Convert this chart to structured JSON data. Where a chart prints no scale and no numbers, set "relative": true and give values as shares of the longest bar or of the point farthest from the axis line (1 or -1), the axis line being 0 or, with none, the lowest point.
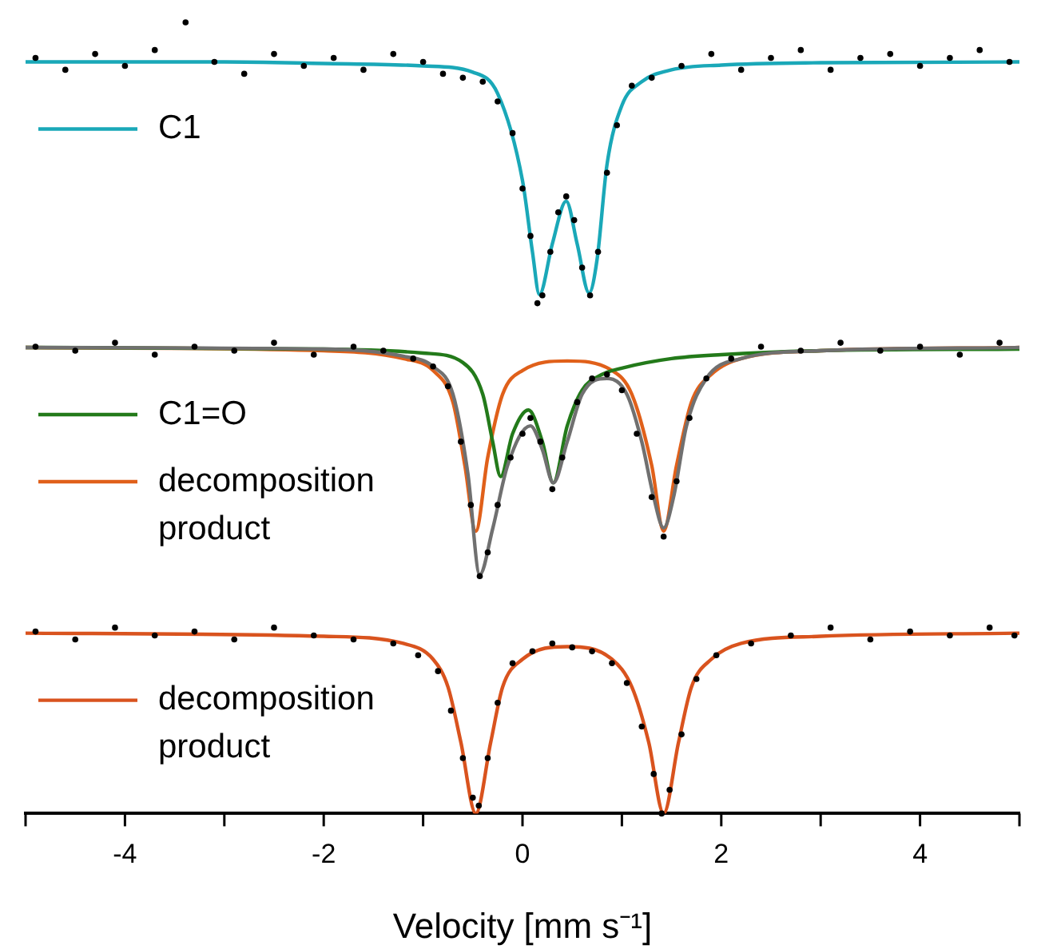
{
  "chart_data": {
    "type": "line",
    "relative": true,
    "xlabel": "Velocity [mm s⁻¹]",
    "xlim": [
      -5,
      5
    ],
    "xticks": [
      {
        "value": -5,
        "label": null
      },
      -4,
      {
        "value": -3,
        "label": null
      },
      -2,
      {
        "value": -1,
        "label": null
      },
      0,
      {
        "value": 1,
        "label": null
      },
      2,
      {
        "value": 3,
        "label": null
      },
      4,
      {
        "value": 5,
        "label": null
      }
    ],
    "grid": false,
    "legend": "left",
    "series": [
      {
        "type": "scatter",
        "marker": "circle",
        "color": "#000000",
        "x": [
          -4.9,
          -4.6,
          -4.3,
          -4.0,
          -3.7,
          -3.39,
          -3.1,
          -2.8,
          -2.5,
          -2.2,
          -1.9,
          -1.6,
          -1.3,
          -1.0,
          -0.8,
          -0.6,
          -0.4,
          -0.25,
          -0.1,
          0.0,
          0.08,
          0.15,
          0.2,
          0.28,
          0.36,
          0.44,
          0.52,
          0.6,
          0.68,
          0.76,
          0.85,
          0.95,
          1.1,
          1.3,
          1.6,
          1.9,
          2.2,
          2.5,
          2.8,
          3.1,
          3.4,
          3.7,
          4.0,
          4.3,
          4.6,
          4.9
        ],
        "values": [
          0.955,
          0.94,
          0.96,
          0.945,
          0.965,
          1.0,
          0.95,
          0.935,
          0.96,
          0.945,
          0.955,
          0.94,
          0.96,
          0.95,
          0.935,
          0.93,
          0.925,
          0.9,
          0.86,
          0.79,
          0.73,
          0.645,
          0.655,
          0.71,
          0.76,
          0.78,
          0.75,
          0.69,
          0.655,
          0.71,
          0.81,
          0.87,
          0.92,
          0.93,
          0.945,
          0.96,
          0.94,
          0.955,
          0.965,
          0.94,
          0.955,
          0.96,
          0.945,
          0.955,
          0.965,
          0.95
        ]
      },
      {
        "type": "scatter",
        "marker": "circle",
        "color": "#000000",
        "x": [
          -4.9,
          -4.5,
          -4.1,
          -3.7,
          -3.3,
          -2.9,
          -2.5,
          -2.1,
          -1.7,
          -1.4,
          -1.1,
          -0.9,
          -0.75,
          -0.62,
          -0.52,
          -0.43,
          -0.35,
          -0.25,
          -0.12,
          0.0,
          0.08,
          0.18,
          0.3,
          0.4,
          0.55,
          0.7,
          0.85,
          1.0,
          1.15,
          1.3,
          1.42,
          1.55,
          1.68,
          1.85,
          2.1,
          2.4,
          2.8,
          3.2,
          3.6,
          4.0,
          4.4,
          4.8
        ],
        "values": [
          0.59,
          0.585,
          0.595,
          0.58,
          0.59,
          0.585,
          0.595,
          0.58,
          0.59,
          0.585,
          0.575,
          0.565,
          0.54,
          0.47,
          0.39,
          0.3,
          0.33,
          0.39,
          0.45,
          0.48,
          0.5,
          0.47,
          0.41,
          0.45,
          0.52,
          0.55,
          0.555,
          0.535,
          0.48,
          0.4,
          0.35,
          0.42,
          0.5,
          0.55,
          0.575,
          0.59,
          0.585,
          0.595,
          0.585,
          0.59,
          0.58,
          0.595
        ]
      },
      {
        "type": "scatter",
        "marker": "circle",
        "color": "#000000",
        "x": [
          -4.9,
          -4.5,
          -4.1,
          -3.7,
          -3.3,
          -2.9,
          -2.5,
          -2.1,
          -1.7,
          -1.3,
          -1.05,
          -0.85,
          -0.72,
          -0.6,
          -0.5,
          -0.44,
          -0.35,
          -0.25,
          -0.1,
          0.1,
          0.3,
          0.5,
          0.7,
          0.9,
          1.05,
          1.2,
          1.32,
          1.4,
          1.48,
          1.6,
          1.75,
          1.95,
          2.3,
          2.7,
          3.1,
          3.5,
          3.9,
          4.3,
          4.7,
          4.95
        ],
        "values": [
          0.23,
          0.22,
          0.235,
          0.225,
          0.23,
          0.22,
          0.235,
          0.225,
          0.22,
          0.215,
          0.2,
          0.18,
          0.13,
          0.07,
          0.02,
          0.01,
          0.07,
          0.14,
          0.19,
          0.205,
          0.215,
          0.21,
          0.205,
          0.19,
          0.165,
          0.11,
          0.05,
          0.0,
          0.03,
          0.1,
          0.17,
          0.2,
          0.215,
          0.225,
          0.235,
          0.22,
          0.23,
          0.225,
          0.235,
          0.225
        ]
      },
      {
        "name": "C1",
        "color": "#1aa8b8",
        "x": [
          -5,
          -3,
          -2,
          -1,
          -0.5,
          -0.25,
          0,
          0.1,
          0.17,
          0.3,
          0.44,
          0.55,
          0.67,
          0.75,
          0.85,
          1.0,
          1.2,
          1.5,
          2,
          3,
          5
        ],
        "values": [
          0.95,
          0.95,
          0.948,
          0.945,
          0.937,
          0.91,
          0.8,
          0.71,
          0.656,
          0.72,
          0.774,
          0.72,
          0.658,
          0.7,
          0.82,
          0.895,
          0.925,
          0.94,
          0.946,
          0.949,
          0.95
        ]
      },
      {
        "color": "#707070",
        "x": [
          -5,
          -2,
          -1.2,
          -0.9,
          -0.7,
          -0.55,
          -0.43,
          -0.3,
          -0.15,
          0.08,
          0.2,
          0.31,
          0.45,
          0.6,
          0.85,
          1.05,
          1.2,
          1.32,
          1.42,
          1.52,
          1.65,
          1.85,
          2.2,
          3,
          5
        ],
        "values": [
          0.589,
          0.587,
          0.578,
          0.565,
          0.53,
          0.43,
          0.302,
          0.36,
          0.44,
          0.49,
          0.46,
          0.418,
          0.47,
          0.53,
          0.55,
          0.53,
          0.47,
          0.4,
          0.361,
          0.4,
          0.49,
          0.55,
          0.575,
          0.585,
          0.589
        ]
      },
      {
        "name": "C1=O",
        "color": "#237a1a",
        "x": [
          -5,
          -2,
          -1,
          -0.6,
          -0.4,
          -0.3,
          -0.22,
          -0.1,
          0.06,
          0.2,
          0.31,
          0.45,
          0.6,
          0.8,
          1.0,
          1.5,
          2,
          3,
          5
        ],
        "values": [
          0.589,
          0.587,
          0.582,
          0.57,
          0.53,
          0.47,
          0.426,
          0.48,
          0.51,
          0.47,
          0.418,
          0.49,
          0.535,
          0.555,
          0.563,
          0.575,
          0.58,
          0.585,
          0.587
        ]
      },
      {
        "name": "decomposition product",
        "color": "#e0601a",
        "x": [
          -5,
          -2,
          -1.2,
          -0.9,
          -0.7,
          -0.58,
          -0.47,
          -0.35,
          -0.2,
          0,
          0.45,
          0.9,
          1.1,
          1.3,
          1.42,
          1.55,
          1.7,
          1.9,
          2.2,
          3,
          5
        ],
        "values": [
          0.589,
          0.585,
          0.575,
          0.56,
          0.52,
          0.44,
          0.357,
          0.45,
          0.53,
          0.56,
          0.572,
          0.56,
          0.53,
          0.44,
          0.357,
          0.44,
          0.52,
          0.555,
          0.575,
          0.585,
          0.589
        ]
      },
      {
        "name": "decomposition product",
        "color": "#d9531e",
        "x": [
          -5,
          -2,
          -1.2,
          -0.9,
          -0.75,
          -0.62,
          -0.47,
          -0.32,
          -0.2,
          0,
          0.45,
          0.9,
          1.1,
          1.27,
          1.42,
          1.57,
          1.7,
          1.9,
          2.2,
          3,
          5
        ],
        "values": [
          0.228,
          0.224,
          0.215,
          0.195,
          0.16,
          0.09,
          0,
          0.09,
          0.16,
          0.195,
          0.211,
          0.195,
          0.16,
          0.09,
          0,
          0.09,
          0.16,
          0.195,
          0.215,
          0.224,
          0.228
        ]
      }
    ]
  }
}
